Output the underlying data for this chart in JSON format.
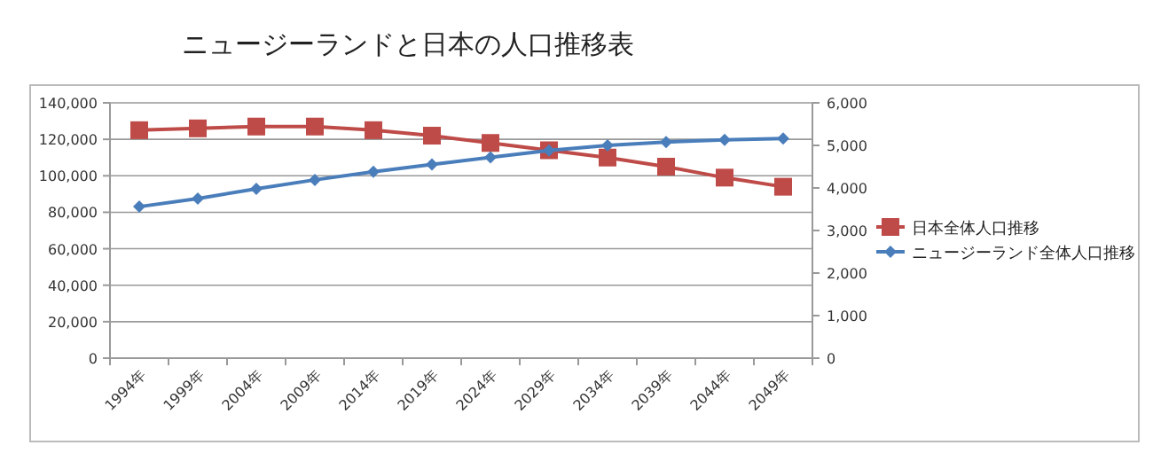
{
  "chart_data": {
    "type": "line",
    "title": "ニュージーランドと日本の人口推移表",
    "categories": [
      "1994年",
      "1999年",
      "2004年",
      "2009年",
      "2014年",
      "2019年",
      "2024年",
      "2029年",
      "2034年",
      "2039年",
      "2044年",
      "2049年"
    ],
    "series": [
      {
        "name": "日本全体人口推移",
        "color": "#be4b48",
        "marker": "square",
        "values": [
          125000,
          126000,
          127000,
          127000,
          125000,
          122000,
          118000,
          114000,
          110000,
          105000,
          99000,
          94000
        ]
      },
      {
        "name": "ニュージーランド全体人口推移",
        "color": "#4a7ebb",
        "marker": "diamond",
        "axis": "y2",
        "values": [
          3560,
          3750,
          3980,
          4190,
          4380,
          4550,
          4720,
          4880,
          5000,
          5080,
          5130,
          5160
        ]
      }
    ],
    "ylim": [
      0,
      140000
    ],
    "yticks": [
      {
        "value": 0,
        "label": "0"
      },
      {
        "value": 20000,
        "label": "20,000"
      },
      {
        "value": 40000,
        "label": "40,000"
      },
      {
        "value": 60000,
        "label": "60,000"
      },
      {
        "value": 80000,
        "label": "80,000"
      },
      {
        "value": 100000,
        "label": "100,000"
      },
      {
        "value": 120000,
        "label": "120,000"
      },
      {
        "value": 140000,
        "label": "140,000"
      }
    ],
    "y2lim": [
      0,
      6000
    ],
    "y2ticks": [
      {
        "value": 0,
        "label": "0"
      },
      {
        "value": 1000,
        "label": "1,000"
      },
      {
        "value": 2000,
        "label": "2,000"
      },
      {
        "value": 3000,
        "label": "3,000"
      },
      {
        "value": 4000,
        "label": "4,000"
      },
      {
        "value": 5000,
        "label": "5,000"
      },
      {
        "value": 6000,
        "label": "6,000"
      }
    ],
    "grid": "y",
    "legend": "right"
  }
}
